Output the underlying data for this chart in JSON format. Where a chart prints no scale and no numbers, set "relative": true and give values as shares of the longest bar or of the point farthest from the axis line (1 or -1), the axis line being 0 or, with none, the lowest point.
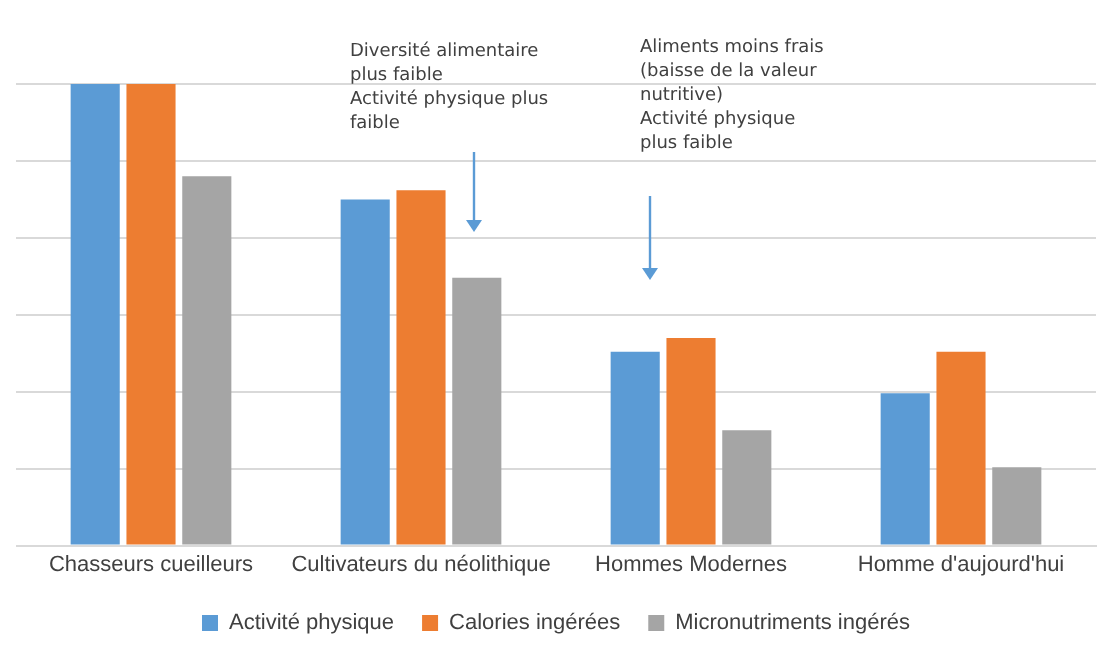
{
  "chart_data": {
    "type": "bar",
    "relative": true,
    "grid": "y",
    "legend": "bottom",
    "categories": [
      "Chasseurs cueilleurs",
      "Cultivateurs du néolithique",
      "Hommes Modernes",
      "Homme d'aujourd'hui"
    ],
    "series": [
      {
        "name": "Activité physique",
        "color": "#5b9bd5",
        "values": [
          1,
          0.75,
          0.42,
          0.33
        ]
      },
      {
        "name": "Calories ingérées",
        "color": "#ed7d31",
        "values": [
          1,
          0.77,
          0.45,
          0.42
        ]
      },
      {
        "name": "Micronutriments ingérés",
        "color": "#a5a5a5",
        "values": [
          0.8,
          0.58,
          0.25,
          0.17
        ]
      }
    ],
    "annotations": [
      "Diversité alimentaire\nplus faible\nActivité physique plus\nfaible",
      "Aliments moins frais\n(baisse de la valeur\nnutritive)\nActivité physique\nplus faible"
    ]
  }
}
